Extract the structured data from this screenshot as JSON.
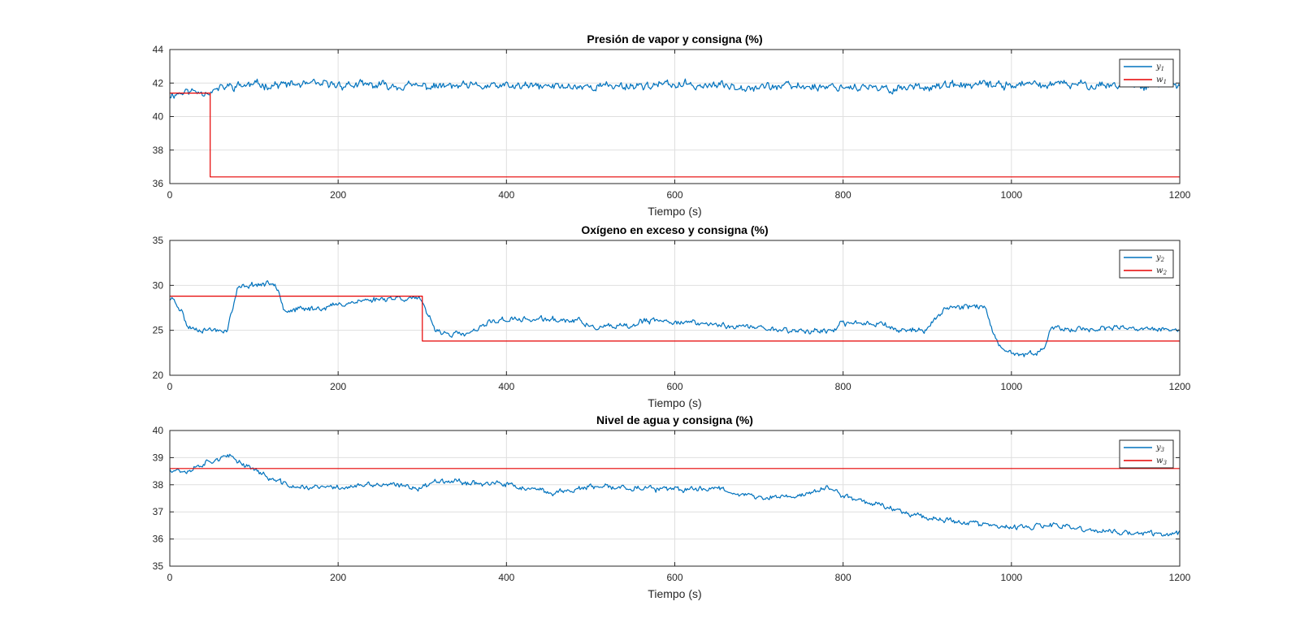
{
  "colors": {
    "y": "#0072BD",
    "w": "#E60000",
    "grid": "#DFDFDF",
    "axis": "#262626"
  },
  "chart_data": [
    {
      "type": "line",
      "title": "Presión de vapor y consigna (%)",
      "xlabel": "Tiempo (s)",
      "ylabel": "",
      "xlim": [
        0,
        1200
      ],
      "ylim": [
        36,
        44
      ],
      "xticks": [
        0,
        200,
        400,
        600,
        800,
        1000,
        1200
      ],
      "yticks": [
        36,
        38,
        40,
        42,
        44
      ],
      "grid": true,
      "legend_position": "top-right",
      "series": [
        {
          "name": "y1",
          "legend_base": "y",
          "legend_sub": "1",
          "color": "#0072BD",
          "noise": 0.22,
          "seed": 11,
          "x": [
            0,
            20,
            40,
            48,
            55,
            70,
            100,
            150,
            200,
            300,
            400,
            500,
            600,
            700,
            800,
            830,
            850,
            880,
            900,
            1000,
            1100,
            1200
          ],
          "y": [
            41.3,
            41.5,
            41.5,
            41.5,
            41.6,
            41.8,
            41.9,
            41.9,
            41.9,
            41.8,
            41.8,
            41.8,
            41.9,
            41.8,
            41.8,
            41.7,
            41.6,
            41.8,
            41.8,
            41.9,
            41.9,
            41.9
          ]
        },
        {
          "name": "w1",
          "legend_base": "w",
          "legend_sub": "1",
          "color": "#E60000",
          "noise": 0,
          "seed": 0,
          "x": [
            0,
            48,
            48,
            1200
          ],
          "y": [
            41.4,
            41.4,
            36.4,
            36.4
          ]
        }
      ]
    },
    {
      "type": "line",
      "title": "Oxígeno en exceso y consigna (%)",
      "xlabel": "Tiempo (s)",
      "ylabel": "",
      "xlim": [
        0,
        1200
      ],
      "ylim": [
        20,
        35
      ],
      "xticks": [
        0,
        200,
        400,
        600,
        800,
        1000,
        1200
      ],
      "yticks": [
        20,
        25,
        30,
        35
      ],
      "grid": true,
      "legend_position": "top-right",
      "series": [
        {
          "name": "y2",
          "legend_base": "y",
          "legend_sub": "2",
          "color": "#0072BD",
          "noise": 0.28,
          "seed": 23,
          "x": [
            0,
            5,
            15,
            20,
            30,
            60,
            68,
            75,
            80,
            90,
            100,
            125,
            130,
            135,
            140,
            180,
            220,
            260,
            295,
            302,
            315,
            330,
            350,
            360,
            375,
            380,
            400,
            450,
            490,
            500,
            550,
            560,
            600,
            650,
            700,
            750,
            790,
            800,
            850,
            860,
            900,
            910,
            920,
            960,
            970,
            975,
            985,
            1000,
            1020,
            1030,
            1040,
            1045,
            1050,
            1100,
            1200
          ],
          "y": [
            28.5,
            28.5,
            27.0,
            25.5,
            25.2,
            25.0,
            25.1,
            27.5,
            29.5,
            30.0,
            30.1,
            30.2,
            29.5,
            27.5,
            27.2,
            27.5,
            28.2,
            28.6,
            28.6,
            27.5,
            25.2,
            24.6,
            24.5,
            24.8,
            25.5,
            26.0,
            26.2,
            26.2,
            26.0,
            25.3,
            25.4,
            26.0,
            26.0,
            25.6,
            25.3,
            24.9,
            25.0,
            25.8,
            25.8,
            25.1,
            25.0,
            26.3,
            27.5,
            27.8,
            27.4,
            25.5,
            23.0,
            22.4,
            22.3,
            22.4,
            23.5,
            24.7,
            25.1,
            25.2,
            25.1
          ]
        },
        {
          "name": "w2",
          "legend_base": "w",
          "legend_sub": "2",
          "color": "#E60000",
          "noise": 0,
          "seed": 0,
          "x": [
            0,
            300,
            300,
            1200
          ],
          "y": [
            28.8,
            28.8,
            23.8,
            23.8
          ]
        }
      ]
    },
    {
      "type": "line",
      "title": "Nivel de agua y consigna (%)",
      "xlabel": "Tiempo (s)",
      "ylabel": "",
      "xlim": [
        0,
        1200
      ],
      "ylim": [
        35,
        40
      ],
      "xticks": [
        0,
        200,
        400,
        600,
        800,
        1000,
        1200
      ],
      "yticks": [
        35,
        36,
        37,
        38,
        39,
        40
      ],
      "grid": true,
      "legend_position": "top-right",
      "series": [
        {
          "name": "y3",
          "legend_base": "y",
          "legend_sub": "3",
          "color": "#0072BD",
          "noise": 0.09,
          "seed": 37,
          "x": [
            0,
            20,
            40,
            60,
            75,
            85,
            100,
            120,
            150,
            200,
            250,
            300,
            320,
            350,
            400,
            450,
            500,
            550,
            600,
            650,
            700,
            750,
            780,
            800,
            850,
            900,
            950,
            1000,
            1050,
            1100,
            1150,
            1200
          ],
          "y": [
            38.6,
            38.5,
            38.8,
            39.0,
            39.0,
            38.8,
            38.6,
            38.2,
            37.9,
            37.9,
            38.0,
            37.9,
            38.2,
            38.1,
            38.0,
            37.7,
            37.9,
            37.9,
            37.8,
            37.9,
            37.5,
            37.6,
            37.9,
            37.6,
            37.2,
            36.8,
            36.6,
            36.4,
            36.5,
            36.3,
            36.2,
            36.2
          ]
        },
        {
          "name": "w3",
          "legend_base": "w",
          "legend_sub": "3",
          "color": "#E60000",
          "noise": 0,
          "seed": 0,
          "x": [
            0,
            1200
          ],
          "y": [
            38.6,
            38.6
          ]
        }
      ]
    }
  ]
}
